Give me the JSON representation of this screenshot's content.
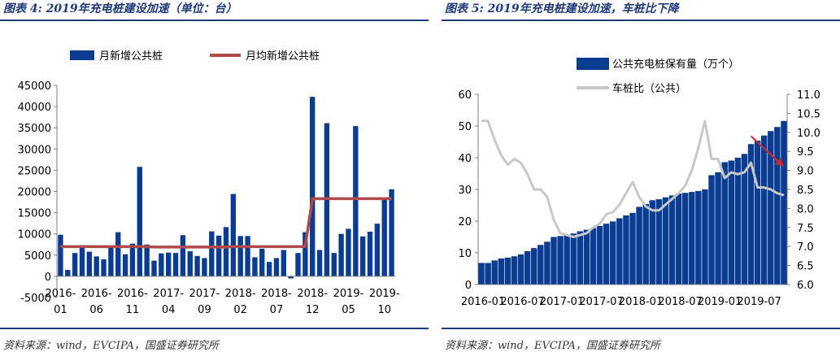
{
  "left": {
    "title": "图表 4: 2019年充电桩建设加速（单位：台）",
    "source": "资料来源：wind，EVCIPA，国盛证券研究所",
    "chart_data": {
      "type": "bar",
      "legend": [
        "月新增公共桩",
        "月均新增公共桩"
      ],
      "ylim": [
        -5000,
        45000
      ],
      "yticks": [
        -5000,
        0,
        5000,
        10000,
        15000,
        20000,
        25000,
        30000,
        35000,
        40000,
        45000
      ],
      "xtick_top": [
        "2016-",
        "2016-",
        "2016-",
        "2017-",
        "2017-",
        "2018-",
        "2018-",
        "2018-",
        "2019-",
        "2019-"
      ],
      "xtick_bottom": [
        "01",
        "06",
        "11",
        "04",
        "09",
        "02",
        "07",
        "12",
        "05",
        "10"
      ],
      "series": [
        {
          "name": "月新增公共桩",
          "type": "bar",
          "values": [
            9800,
            1500,
            5500,
            7300,
            5800,
            4700,
            4000,
            7000,
            10400,
            5200,
            7700,
            25800,
            7500,
            3700,
            5400,
            5600,
            5500,
            9700,
            5900,
            4800,
            4300,
            10600,
            9600,
            11600,
            19400,
            9500,
            9500,
            4500,
            6500,
            3400,
            4300,
            6200,
            -500,
            5500,
            10400,
            42300,
            6200,
            36100,
            5500,
            10000,
            11200,
            35400,
            9400,
            10500,
            12400,
            18000,
            20500
          ]
        },
        {
          "name": "月均新增公共桩",
          "type": "line",
          "values": [
            7000,
            7000,
            7000,
            7000,
            7000,
            7000,
            7000,
            7000,
            7000,
            7000,
            7000,
            7000,
            7000,
            6900,
            6900,
            6900,
            6900,
            6900,
            6900,
            6900,
            6900,
            6900,
            6900,
            6900,
            7000,
            7000,
            7000,
            7000,
            7000,
            7000,
            7000,
            7000,
            7000,
            7000,
            7000,
            18300,
            18300,
            18300,
            18300,
            18300,
            18300,
            18300,
            18300,
            18300,
            18300,
            18300,
            18300
          ]
        }
      ]
    }
  },
  "right": {
    "title": "图表 5:  2019年充电桩建设加速，车桩比下降",
    "source": "资料来源：wind，EVCIPA，国盛证券研究所",
    "chart_data": {
      "type": "bar",
      "legend": [
        "公共充电桩保有量（万个）",
        "车桩比（公共）"
      ],
      "ylim": [
        0,
        60
      ],
      "y2lim": [
        6.0,
        11.0
      ],
      "yticks": [
        0,
        10,
        20,
        30,
        40,
        50,
        60
      ],
      "y2ticks": [
        "6.0",
        "6.5",
        "7.0",
        "7.5",
        "8.0",
        "8.5",
        "9.0",
        "9.5",
        "10.0",
        "10.5",
        "11.0"
      ],
      "xticks": [
        "2016-01",
        "2016-07",
        "2017-01",
        "2017-07",
        "2018-01",
        "2018-07",
        "2019-01",
        "2019-07"
      ],
      "series": [
        {
          "name": "公共充电桩保有量（万个）",
          "type": "bar",
          "values": [
            6.8,
            6.8,
            7.6,
            8.2,
            8.5,
            8.9,
            9.5,
            10.5,
            11.5,
            12.5,
            13.5,
            15.0,
            15.3,
            15.6,
            16.1,
            16.8,
            17.3,
            17.8,
            18.5,
            19.2,
            19.9,
            20.9,
            21.8,
            22.6,
            24.5,
            25.4,
            26.6,
            26.9,
            27.5,
            28.1,
            28.7,
            28.9,
            29.2,
            29.5,
            30.0,
            34.5,
            35.4,
            38.6,
            39.1,
            40.0,
            41.2,
            44.3,
            45.4,
            47.0,
            48.4,
            49.7,
            51.6
          ]
        },
        {
          "name": "车桩比（公共）",
          "type": "line",
          "axis": "right",
          "values": [
            10.3,
            10.3,
            9.8,
            9.4,
            9.15,
            9.3,
            9.2,
            8.9,
            8.5,
            8.5,
            8.3,
            7.7,
            7.35,
            7.3,
            7.25,
            7.3,
            7.35,
            7.5,
            7.6,
            7.85,
            7.9,
            8.1,
            8.4,
            8.7,
            8.3,
            8.05,
            7.95,
            7.95,
            8.1,
            8.25,
            8.4,
            8.6,
            9.0,
            9.6,
            10.3,
            9.3,
            9.3,
            8.8,
            8.95,
            8.9,
            8.95,
            9.2,
            8.55,
            8.55,
            8.5,
            8.4,
            8.35
          ]
        }
      ],
      "annotation": {
        "type": "arrow",
        "color": "#d22a2a",
        "from": [
          41,
          9.9
        ],
        "to": [
          46,
          9.1
        ]
      }
    }
  },
  "colors": {
    "bar": "#0a3d91",
    "avg_line": "#b04a4a",
    "ratio_line": "#c8c8c8",
    "axis": "#7f7f7f",
    "title": "#1f3a7a",
    "arrow": "#d22a2a"
  }
}
